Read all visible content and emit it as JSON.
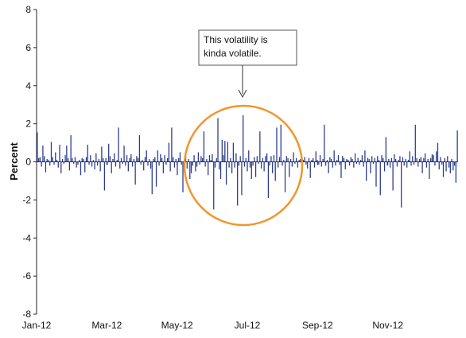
{
  "chart_data": {
    "type": "bar",
    "title": "",
    "xlabel": "",
    "ylabel": "Percent",
    "ylim": [
      -8,
      8
    ],
    "yticks": [
      8,
      6,
      4,
      2,
      0,
      -2,
      -4,
      -6,
      -8
    ],
    "x_tick_labels": [
      "Jan-12",
      "Mar-12",
      "May-12",
      "Jul-12",
      "Sep-12",
      "Nov-12"
    ],
    "grid": false,
    "bar_color": "#2a3a8c",
    "annotation": {
      "text_lines": [
        "This volatility is",
        "kinda volatile."
      ],
      "highlight_color": "#f0962c"
    },
    "series": [
      {
        "values": [
          1.55,
          0.2,
          0.25,
          -0.25,
          0.85,
          0.3,
          -0.55,
          0.15,
          0.1,
          -0.2,
          1.05,
          0.25,
          -0.15,
          0.5,
          0.1,
          -0.3,
          0.9,
          -0.6,
          0.15,
          -0.1,
          0.35,
          0.85,
          0.2,
          -0.45,
          1.4,
          0.2,
          -0.1,
          0.25,
          -0.3,
          -0.15,
          0.1,
          -0.7,
          0.2,
          0.15,
          -0.55,
          0.25,
          0.9,
          -0.15,
          0.35,
          -0.25,
          0.1,
          -0.4,
          0.45,
          -0.2,
          0.15,
          -0.5,
          0.8,
          0.2,
          -1.5,
          0.2,
          -0.15,
          0.95,
          0.3,
          -0.6,
          0.15,
          0.45,
          -0.25,
          0.1,
          1.8,
          -0.35,
          0.2,
          -0.1,
          0.85,
          -0.2,
          0.35,
          -0.5,
          0.2,
          0.4,
          -0.25,
          0.15,
          -1.2,
          0.3,
          0.2,
          1.4,
          -0.15,
          0.1,
          -0.45,
          0.25,
          0.6,
          -0.2,
          0.15,
          -0.35,
          -1.7,
          0.15,
          0.25,
          -1.3,
          0.6,
          -0.2,
          0.4,
          0.2,
          -0.6,
          0.35,
          -0.15,
          0.2,
          1.0,
          -0.5,
          1.8,
          0.25,
          -0.3,
          0.15,
          -0.7,
          0.2,
          0.5,
          -0.15,
          -1.6,
          -0.2,
          0.3,
          -0.35,
          0.15,
          -0.9,
          -0.6,
          -0.2,
          0.35,
          -0.5,
          -0.25,
          0.5,
          -0.15,
          0.3,
          0.2,
          1.6,
          -0.25,
          0.15,
          -0.7,
          0.35,
          0.1,
          0.4,
          -2.5,
          -0.3,
          0.2,
          2.3,
          -0.4,
          -0.9,
          1.15,
          0.35,
          1.1,
          -1.2,
          1.05,
          -0.3,
          0.2,
          -0.6,
          1.0,
          -0.3,
          0.45,
          -2.3,
          -0.2,
          0.3,
          -1.75,
          2.45,
          -0.25,
          0.2,
          -0.5,
          0.6,
          -0.3,
          -0.9,
          -0.2,
          0.25,
          -0.8,
          0.3,
          -0.1,
          1.6,
          -0.35,
          0.2,
          -0.5,
          0.3,
          0.45,
          -1.9,
          -0.2,
          0.3,
          -0.6,
          0.35,
          -1.0,
          1.8,
          -0.3,
          0.25,
          1.95,
          -0.2,
          0.1,
          -1.6,
          0.3,
          0.2,
          -0.8,
          0.15,
          -0.25,
          0.5,
          -0.1,
          0.2,
          -0.3,
          0.1,
          0.15,
          -0.2,
          0.1,
          0.25,
          -0.15,
          -0.35,
          0.2,
          -0.85,
          0.1,
          0.2,
          -0.3,
          0.55,
          0.1,
          -0.15,
          0.35,
          -0.25,
          0.15,
          1.95,
          -0.2,
          0.1,
          -0.6,
          0.25,
          0.15,
          -0.3,
          0.6,
          -0.2,
          0.1,
          0.35,
          -0.15,
          -0.85,
          0.3,
          0.2,
          -0.4,
          0.15,
          0.1,
          -0.2,
          0.25,
          0.15,
          -0.3,
          0.45,
          -0.1,
          0.2,
          -0.15,
          0.1,
          0.35,
          -0.25,
          0.6,
          -1.0,
          0.2,
          0.15,
          -0.6,
          0.3,
          -0.1,
          0.2,
          -1.3,
          0.3,
          0.1,
          -1.75,
          0.35,
          0.2,
          -0.5,
          1.3,
          -0.2,
          0.15,
          -0.3,
          0.2,
          -1.5,
          0.4,
          0.15,
          -0.25,
          0.1,
          0.3,
          -2.4,
          0.25,
          -0.2,
          0.15,
          -0.3,
          0.1,
          0.55,
          -0.2,
          0.3,
          -0.15,
          1.95,
          0.2,
          -0.25,
          0.15,
          0.25,
          -0.6,
          0.2,
          0.45,
          -0.3,
          0.15,
          -0.9,
          0.2,
          0.4,
          0.35,
          -0.2,
          0.55,
          1.0,
          -0.4,
          0.25,
          -0.15,
          -0.8,
          0.2,
          -0.5,
          0.3,
          -0.3,
          -0.6,
          0.15,
          -0.45,
          -0.2,
          -1.1,
          1.65
        ]
      }
    ]
  }
}
